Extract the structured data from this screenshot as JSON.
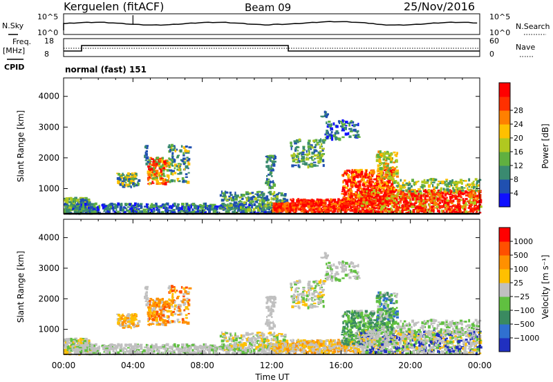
{
  "header": {
    "site": "Kerguelen (fitACF)",
    "beam": "Beam 09",
    "date": "25/Nov/2016"
  },
  "status": {
    "nsky_label": "N.Sky",
    "nsearch_label": "N.Search",
    "freq_label": "Freq.",
    "freq_unit": "[MHz]",
    "nave_label": "Nave",
    "cpid_label": "CPID",
    "cpid_text": "normal (fast) 151",
    "noise_ticks": [
      "10^5",
      "10^0"
    ],
    "freq_ticks": [
      "18",
      "8"
    ],
    "nave_ticks": [
      "60",
      "0"
    ]
  },
  "chart_data": [
    {
      "type": "heatmap",
      "name": "power",
      "ylabel": "Slant Range [km]",
      "xlabel": "Time UT",
      "x_ticks": [
        "00:00",
        "04:00",
        "08:00",
        "12:00",
        "16:00",
        "20:00",
        "00:00"
      ],
      "y_ticks": [
        1000,
        2000,
        3000,
        4000
      ],
      "ylim": [
        180,
        4600
      ],
      "xlim_hours": [
        0,
        24
      ],
      "colorbar": {
        "label": "Power [dB]",
        "ticks": [
          4,
          8,
          12,
          16,
          20,
          24,
          28
        ],
        "colors": [
          "#1010ff",
          "#2050b0",
          "#3a8a70",
          "#60b040",
          "#b0c820",
          "#ffc000",
          "#ff8000",
          "#ff3000",
          "#ff0000"
        ]
      }
    },
    {
      "type": "heatmap",
      "name": "velocity",
      "ylabel": "Slant Range [km]",
      "xlabel": "Time UT",
      "x_ticks": [
        "00:00",
        "04:00",
        "08:00",
        "12:00",
        "16:00",
        "20:00",
        "00:00"
      ],
      "y_ticks": [
        1000,
        2000,
        3000,
        4000
      ],
      "ylim": [
        180,
        4600
      ],
      "xlim_hours": [
        0,
        24
      ],
      "colorbar": {
        "label": "Velocity [m s⁻¹]",
        "ticks": [
          "1000",
          "500",
          "100",
          "25",
          "−25",
          "−100",
          "−500",
          "−1000"
        ],
        "colors": [
          "#2030c0",
          "#3070d0",
          "#3a8a60",
          "#60c040",
          "#c0c0c0",
          "#ffc000",
          "#ff9000",
          "#ff5000",
          "#ff0000"
        ]
      }
    }
  ]
}
